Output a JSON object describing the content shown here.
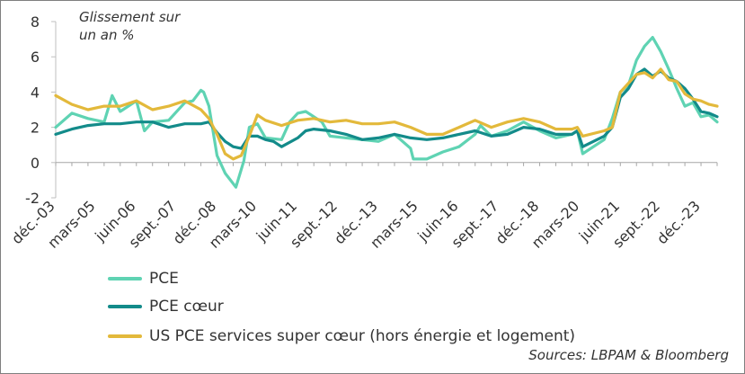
{
  "chart_data": {
    "type": "line",
    "annotation": [
      "Glissement sur",
      "un an %"
    ],
    "source": "Sources: LBPAM & Bloomberg",
    "ylim": [
      -2,
      8
    ],
    "yticks": [
      -2,
      0,
      2,
      4,
      6,
      8
    ],
    "grid": false,
    "legend_position": "bottom-left",
    "x_range": [
      "2003-12",
      "2024-06"
    ],
    "xtick_labels": [
      {
        "label": "déc.-03",
        "date": "2003-12"
      },
      {
        "label": "mars-05",
        "date": "2005-03"
      },
      {
        "label": "juin-06",
        "date": "2006-06"
      },
      {
        "label": "sept.-07",
        "date": "2007-09"
      },
      {
        "label": "déc.-08",
        "date": "2008-12"
      },
      {
        "label": "mars-10",
        "date": "2010-03"
      },
      {
        "label": "juin-11",
        "date": "2011-06"
      },
      {
        "label": "sept.-12",
        "date": "2012-09"
      },
      {
        "label": "déc.-13",
        "date": "2013-12"
      },
      {
        "label": "mars-15",
        "date": "2015-03"
      },
      {
        "label": "juin-16",
        "date": "2016-06"
      },
      {
        "label": "sept.-17",
        "date": "2017-09"
      },
      {
        "label": "déc.-18",
        "date": "2018-12"
      },
      {
        "label": "mars-20",
        "date": "2020-03"
      },
      {
        "label": "juin-21",
        "date": "2021-06"
      },
      {
        "label": "sept.-22",
        "date": "2022-09"
      },
      {
        "label": "déc.-23",
        "date": "2023-12"
      }
    ],
    "series": [
      {
        "name": "PCE",
        "color": "#5fd3b3",
        "points": [
          [
            "2003-12",
            2.0
          ],
          [
            "2004-06",
            2.8
          ],
          [
            "2004-12",
            2.5
          ],
          [
            "2005-06",
            2.3
          ],
          [
            "2005-09",
            3.8
          ],
          [
            "2005-12",
            2.9
          ],
          [
            "2006-06",
            3.5
          ],
          [
            "2006-09",
            1.8
          ],
          [
            "2006-12",
            2.3
          ],
          [
            "2007-06",
            2.4
          ],
          [
            "2007-12",
            3.4
          ],
          [
            "2008-03",
            3.5
          ],
          [
            "2008-06",
            4.1
          ],
          [
            "2008-07",
            4.0
          ],
          [
            "2008-09",
            3.2
          ],
          [
            "2008-12",
            0.4
          ],
          [
            "2009-03",
            -0.6
          ],
          [
            "2009-07",
            -1.4
          ],
          [
            "2009-10",
            0.1
          ],
          [
            "2009-12",
            2.0
          ],
          [
            "2010-03",
            2.2
          ],
          [
            "2010-06",
            1.4
          ],
          [
            "2010-12",
            1.3
          ],
          [
            "2011-03",
            2.3
          ],
          [
            "2011-06",
            2.8
          ],
          [
            "2011-09",
            2.9
          ],
          [
            "2011-12",
            2.6
          ],
          [
            "2012-03",
            2.3
          ],
          [
            "2012-06",
            1.5
          ],
          [
            "2012-12",
            1.4
          ],
          [
            "2013-06",
            1.3
          ],
          [
            "2013-12",
            1.2
          ],
          [
            "2014-06",
            1.6
          ],
          [
            "2014-12",
            0.8
          ],
          [
            "2015-01",
            0.2
          ],
          [
            "2015-06",
            0.2
          ],
          [
            "2015-12",
            0.6
          ],
          [
            "2016-06",
            0.9
          ],
          [
            "2016-12",
            1.6
          ],
          [
            "2017-02",
            2.1
          ],
          [
            "2017-06",
            1.5
          ],
          [
            "2017-12",
            1.8
          ],
          [
            "2018-06",
            2.3
          ],
          [
            "2018-12",
            1.8
          ],
          [
            "2019-06",
            1.4
          ],
          [
            "2019-12",
            1.6
          ],
          [
            "2020-02",
            1.8
          ],
          [
            "2020-04",
            0.5
          ],
          [
            "2020-12",
            1.3
          ],
          [
            "2021-03",
            2.5
          ],
          [
            "2021-06",
            4.0
          ],
          [
            "2021-09",
            4.4
          ],
          [
            "2021-12",
            5.8
          ],
          [
            "2022-03",
            6.6
          ],
          [
            "2022-06",
            7.1
          ],
          [
            "2022-09",
            6.3
          ],
          [
            "2022-12",
            5.3
          ],
          [
            "2023-03",
            4.2
          ],
          [
            "2023-06",
            3.2
          ],
          [
            "2023-09",
            3.4
          ],
          [
            "2023-12",
            2.6
          ],
          [
            "2024-03",
            2.7
          ],
          [
            "2024-06",
            2.3
          ]
        ]
      },
      {
        "name": "PCE cœur",
        "color": "#138b8a",
        "points": [
          [
            "2003-12",
            1.6
          ],
          [
            "2004-06",
            1.9
          ],
          [
            "2004-12",
            2.1
          ],
          [
            "2005-06",
            2.2
          ],
          [
            "2005-12",
            2.2
          ],
          [
            "2006-06",
            2.3
          ],
          [
            "2006-12",
            2.3
          ],
          [
            "2007-06",
            2.0
          ],
          [
            "2007-12",
            2.2
          ],
          [
            "2008-06",
            2.2
          ],
          [
            "2008-09",
            2.3
          ],
          [
            "2008-12",
            1.7
          ],
          [
            "2009-03",
            1.2
          ],
          [
            "2009-06",
            0.9
          ],
          [
            "2009-09",
            0.8
          ],
          [
            "2009-12",
            1.5
          ],
          [
            "2010-03",
            1.5
          ],
          [
            "2010-06",
            1.3
          ],
          [
            "2010-09",
            1.2
          ],
          [
            "2010-12",
            0.9
          ],
          [
            "2011-06",
            1.4
          ],
          [
            "2011-09",
            1.8
          ],
          [
            "2011-12",
            1.9
          ],
          [
            "2012-06",
            1.8
          ],
          [
            "2012-12",
            1.6
          ],
          [
            "2013-06",
            1.3
          ],
          [
            "2013-12",
            1.4
          ],
          [
            "2014-06",
            1.6
          ],
          [
            "2014-12",
            1.4
          ],
          [
            "2015-06",
            1.3
          ],
          [
            "2015-12",
            1.4
          ],
          [
            "2016-06",
            1.6
          ],
          [
            "2016-12",
            1.8
          ],
          [
            "2017-06",
            1.5
          ],
          [
            "2017-12",
            1.6
          ],
          [
            "2018-06",
            2.0
          ],
          [
            "2018-12",
            1.9
          ],
          [
            "2019-06",
            1.6
          ],
          [
            "2019-12",
            1.6
          ],
          [
            "2020-02",
            1.8
          ],
          [
            "2020-04",
            0.9
          ],
          [
            "2020-12",
            1.5
          ],
          [
            "2021-03",
            2.0
          ],
          [
            "2021-06",
            3.7
          ],
          [
            "2021-09",
            4.2
          ],
          [
            "2021-12",
            5.0
          ],
          [
            "2022-03",
            5.3
          ],
          [
            "2022-06",
            4.9
          ],
          [
            "2022-09",
            5.2
          ],
          [
            "2022-12",
            4.8
          ],
          [
            "2023-03",
            4.6
          ],
          [
            "2023-06",
            4.2
          ],
          [
            "2023-09",
            3.6
          ],
          [
            "2023-12",
            2.9
          ],
          [
            "2024-03",
            2.8
          ],
          [
            "2024-06",
            2.6
          ]
        ]
      },
      {
        "name": "US PCE services super cœur (hors énergie et logement)",
        "color": "#e3b93b",
        "points": [
          [
            "2003-12",
            3.8
          ],
          [
            "2004-06",
            3.3
          ],
          [
            "2004-12",
            3.0
          ],
          [
            "2005-06",
            3.2
          ],
          [
            "2005-12",
            3.2
          ],
          [
            "2006-06",
            3.5
          ],
          [
            "2006-12",
            3.0
          ],
          [
            "2007-06",
            3.2
          ],
          [
            "2007-12",
            3.5
          ],
          [
            "2008-06",
            3.0
          ],
          [
            "2008-09",
            2.5
          ],
          [
            "2008-12",
            1.6
          ],
          [
            "2009-03",
            0.5
          ],
          [
            "2009-06",
            0.2
          ],
          [
            "2009-09",
            0.4
          ],
          [
            "2009-12",
            1.5
          ],
          [
            "2010-03",
            2.7
          ],
          [
            "2010-06",
            2.4
          ],
          [
            "2010-12",
            2.1
          ],
          [
            "2011-06",
            2.4
          ],
          [
            "2011-12",
            2.5
          ],
          [
            "2012-06",
            2.3
          ],
          [
            "2012-12",
            2.4
          ],
          [
            "2013-06",
            2.2
          ],
          [
            "2013-12",
            2.2
          ],
          [
            "2014-06",
            2.3
          ],
          [
            "2014-12",
            2.0
          ],
          [
            "2015-06",
            1.6
          ],
          [
            "2015-12",
            1.6
          ],
          [
            "2016-06",
            2.0
          ],
          [
            "2016-12",
            2.4
          ],
          [
            "2017-06",
            2.0
          ],
          [
            "2017-12",
            2.3
          ],
          [
            "2018-06",
            2.5
          ],
          [
            "2018-12",
            2.3
          ],
          [
            "2019-06",
            1.9
          ],
          [
            "2019-12",
            1.9
          ],
          [
            "2020-02",
            2.0
          ],
          [
            "2020-04",
            1.5
          ],
          [
            "2020-12",
            1.8
          ],
          [
            "2021-03",
            2.0
          ],
          [
            "2021-06",
            4.0
          ],
          [
            "2021-09",
            4.5
          ],
          [
            "2021-12",
            5.0
          ],
          [
            "2022-03",
            5.1
          ],
          [
            "2022-06",
            4.8
          ],
          [
            "2022-09",
            5.3
          ],
          [
            "2022-12",
            4.7
          ],
          [
            "2023-03",
            4.6
          ],
          [
            "2023-06",
            3.9
          ],
          [
            "2023-09",
            3.6
          ],
          [
            "2023-12",
            3.5
          ],
          [
            "2024-03",
            3.3
          ],
          [
            "2024-06",
            3.2
          ]
        ]
      }
    ]
  }
}
